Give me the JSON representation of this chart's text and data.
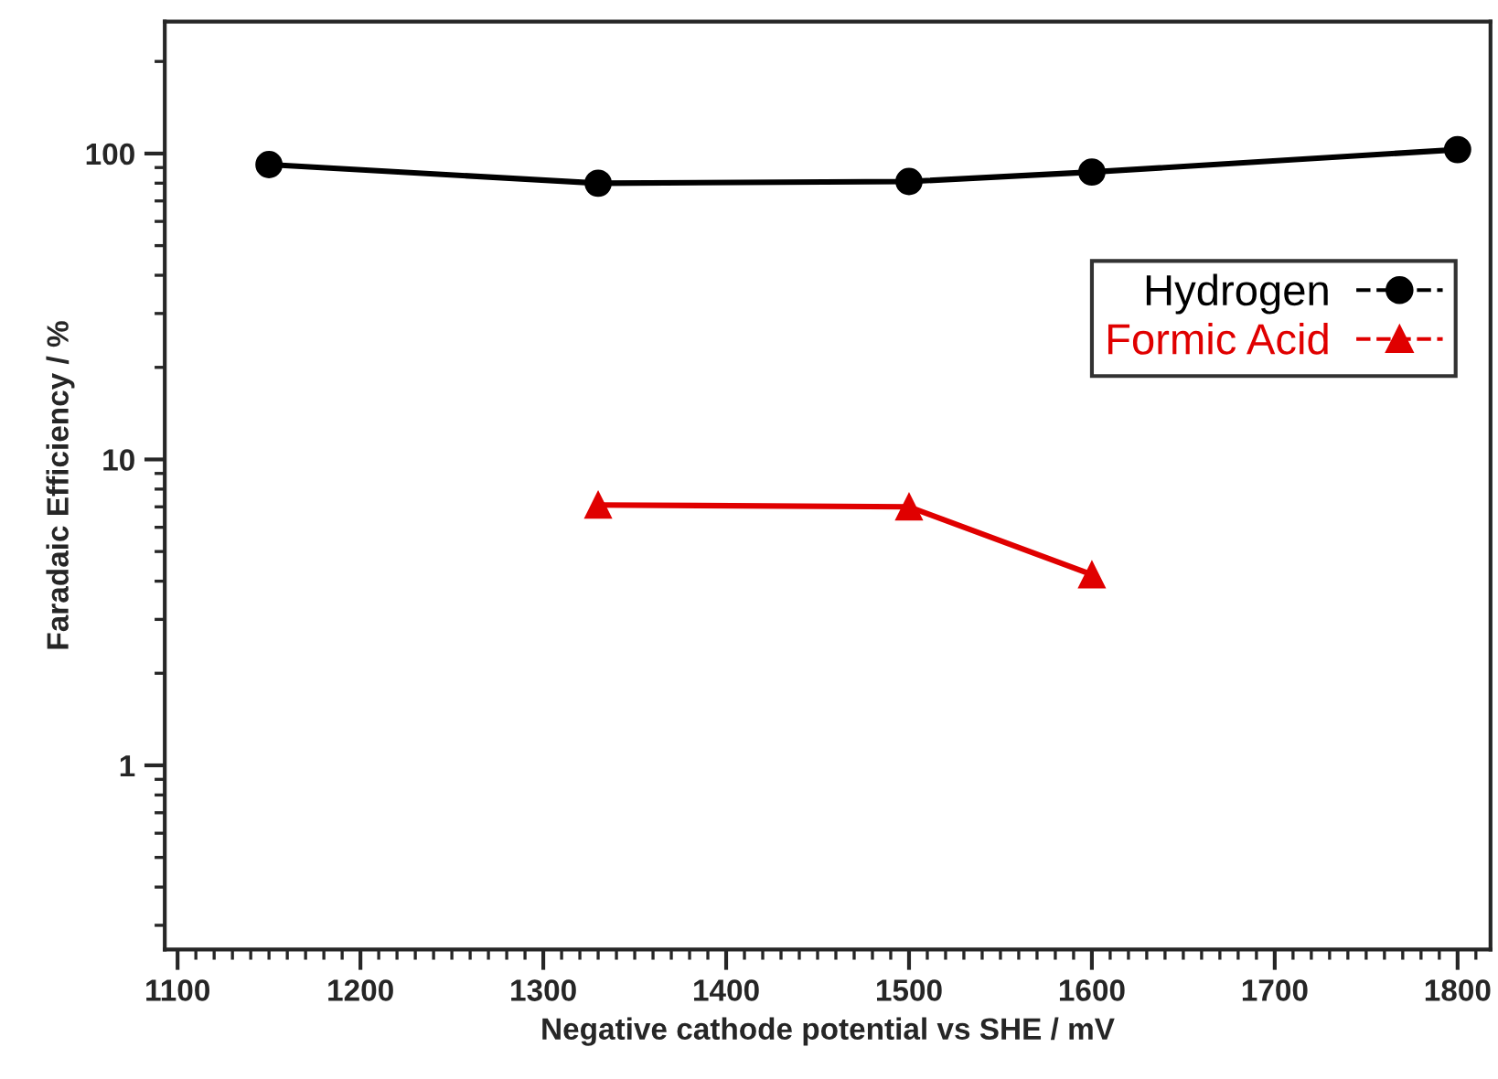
{
  "chart_data": {
    "type": "line",
    "xlabel": "Negative cathode potential vs SHE / mV",
    "ylabel": "Faradaic Efficiency / %",
    "xlim": [
      1093,
      1818
    ],
    "xticks": [
      1100,
      1200,
      1300,
      1400,
      1500,
      1600,
      1700,
      1800
    ],
    "ylim": [
      0.25,
      270
    ],
    "yticks": [
      1,
      10,
      100
    ],
    "log": "y",
    "grid": false,
    "legend": "right",
    "line_style": "solid",
    "series": [
      {
        "name": "Hydrogen",
        "color": "#000000",
        "marker": "circle",
        "x": [
          1150,
          1330,
          1500,
          1600,
          1800
        ],
        "values": [
          92,
          80,
          81,
          87,
          103
        ]
      },
      {
        "name": "Formic Acid",
        "color": "#e00000",
        "marker": "triangle",
        "x": [
          1330,
          1500,
          1600
        ],
        "values": [
          7.1,
          7.0,
          4.2
        ]
      }
    ]
  }
}
